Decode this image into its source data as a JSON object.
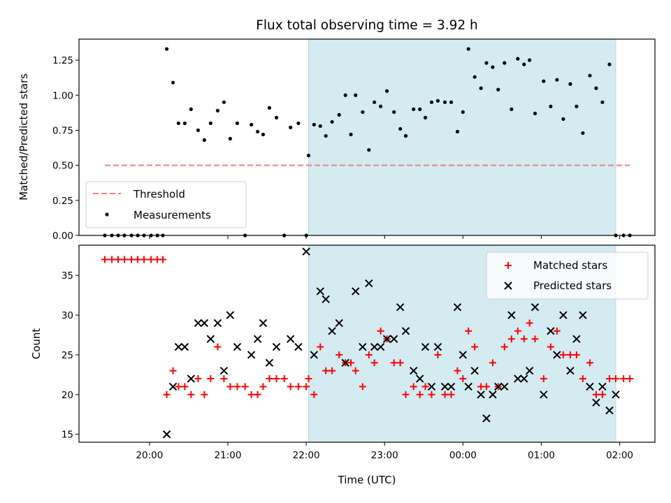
{
  "chart_data": {
    "type": "scatter",
    "title": "Flux total observing time = 3.92 h",
    "xlabel": "Time (UTC)",
    "x_ticks": [
      "20:00",
      "21:00",
      "22:00",
      "23:00",
      "00:00",
      "01:00",
      "02:00"
    ],
    "x_range_hours": [
      19.1,
      26.45
    ],
    "shaded_interval_hours": [
      22.03,
      25.95
    ],
    "shade_color": "#d4ebf2",
    "panels": [
      {
        "ylabel": "Matched/Predicted stars",
        "ylim": [
          0.0,
          1.4
        ],
        "yticks": [
          "0.00",
          "0.25",
          "0.50",
          "0.75",
          "1.00",
          "1.25"
        ],
        "legend_position": "lower-left",
        "threshold": {
          "name": "Threshold",
          "value": 0.5,
          "x_start": 19.43,
          "x_end": 26.13,
          "color": "#f08080"
        },
        "series": [
          {
            "name": "Measurements",
            "color": "#000000",
            "marker": "dot",
            "x": [
              19.43,
              19.52,
              19.6,
              19.68,
              19.77,
              19.85,
              19.93,
              20.02,
              20.1,
              20.17,
              20.22,
              20.3,
              20.37,
              20.45,
              20.53,
              20.62,
              20.7,
              20.78,
              20.87,
              20.95,
              21.03,
              21.12,
              21.22,
              21.3,
              21.38,
              21.45,
              21.53,
              21.62,
              21.72,
              21.8,
              21.9,
              22.0,
              22.03,
              22.1,
              22.18,
              22.25,
              22.33,
              22.42,
              22.5,
              22.57,
              22.63,
              22.72,
              22.8,
              22.87,
              22.95,
              23.03,
              23.12,
              23.2,
              23.27,
              23.37,
              23.45,
              23.52,
              23.6,
              23.68,
              23.77,
              23.85,
              23.93,
              24.0,
              24.07,
              24.15,
              24.23,
              24.3,
              24.38,
              24.45,
              24.53,
              24.62,
              24.7,
              24.78,
              24.85,
              24.92,
              25.03,
              25.12,
              25.2,
              25.28,
              25.37,
              25.45,
              25.53,
              25.62,
              25.7,
              25.78,
              25.87,
              25.95,
              26.05,
              26.13
            ],
            "y": [
              0,
              0,
              0,
              0,
              0,
              0,
              0,
              0,
              0,
              0,
              1.33,
              1.09,
              0.8,
              0.8,
              0.9,
              0.75,
              0.68,
              0.8,
              0.89,
              0.95,
              0.69,
              0.8,
              0.0,
              0.79,
              0.74,
              0.72,
              0.91,
              0.84,
              0.0,
              0.77,
              0.8,
              0.0,
              0.57,
              0.79,
              0.78,
              0.71,
              0.81,
              0.86,
              1.0,
              0.72,
              1.0,
              0.88,
              0.61,
              0.95,
              0.92,
              1.03,
              0.88,
              0.76,
              0.71,
              0.9,
              0.9,
              0.84,
              0.95,
              0.96,
              0.95,
              0.95,
              0.74,
              0.88,
              1.33,
              1.13,
              1.05,
              1.23,
              1.2,
              1.04,
              1.23,
              0.9,
              1.26,
              1.22,
              1.25,
              0.87,
              1.1,
              0.92,
              1.11,
              0.83,
              1.08,
              0.92,
              0.73,
              1.14,
              1.05,
              0.95,
              1.22,
              0.0,
              0.0,
              0.0
            ]
          }
        ]
      },
      {
        "ylabel": "Count",
        "ylim": [
          14,
          38.8
        ],
        "yticks": [
          "15",
          "20",
          "25",
          "30",
          "35"
        ],
        "legend_position": "upper-right",
        "series": [
          {
            "name": "Matched stars",
            "color": "#ff0000",
            "marker": "plus",
            "x": [
              19.43,
              19.52,
              19.6,
              19.68,
              19.77,
              19.85,
              19.93,
              20.02,
              20.1,
              20.17,
              20.22,
              20.3,
              20.37,
              20.45,
              20.53,
              20.62,
              20.7,
              20.78,
              20.87,
              20.95,
              21.03,
              21.12,
              21.22,
              21.3,
              21.38,
              21.45,
              21.53,
              21.62,
              21.72,
              21.8,
              21.9,
              22.0,
              22.03,
              22.1,
              22.18,
              22.25,
              22.33,
              22.42,
              22.5,
              22.57,
              22.63,
              22.72,
              22.8,
              22.87,
              22.95,
              23.03,
              23.12,
              23.2,
              23.27,
              23.37,
              23.45,
              23.52,
              23.6,
              23.68,
              23.77,
              23.85,
              23.93,
              24.0,
              24.07,
              24.15,
              24.23,
              24.3,
              24.38,
              24.45,
              24.53,
              24.62,
              24.7,
              24.78,
              24.85,
              24.92,
              25.03,
              25.12,
              25.2,
              25.28,
              25.37,
              25.45,
              25.53,
              25.62,
              25.7,
              25.78,
              25.87,
              25.95,
              26.05,
              26.13
            ],
            "y": [
              37,
              37,
              37,
              37,
              37,
              37,
              37,
              37,
              37,
              37,
              20,
              23,
              21,
              21,
              20,
              22,
              20,
              22,
              26,
              22,
              21,
              21,
              21,
              20,
              20,
              21,
              22,
              22,
              22,
              21,
              21,
              21,
              22,
              20,
              26,
              23,
              23,
              25,
              24,
              24,
              23,
              21,
              25,
              24,
              28,
              27,
              24,
              24,
              20,
              21,
              20,
              21,
              20,
              25,
              20,
              20,
              23,
              22,
              28,
              26,
              21,
              21,
              24,
              21,
              26,
              27,
              28,
              27,
              29,
              27,
              22,
              26,
              28,
              25,
              25,
              25,
              22,
              24,
              20,
              20,
              22,
              22,
              22,
              22
            ]
          },
          {
            "name": "Predicted stars",
            "color": "#000000",
            "marker": "x",
            "x": [
              20.22,
              20.3,
              20.37,
              20.45,
              20.53,
              20.62,
              20.7,
              20.78,
              20.87,
              20.95,
              21.03,
              21.12,
              21.3,
              21.38,
              21.45,
              21.53,
              21.62,
              21.8,
              21.9,
              22.0,
              22.1,
              22.18,
              22.25,
              22.33,
              22.42,
              22.5,
              22.63,
              22.72,
              22.8,
              22.87,
              22.95,
              23.03,
              23.12,
              23.2,
              23.27,
              23.37,
              23.45,
              23.52,
              23.6,
              23.68,
              23.77,
              23.85,
              23.93,
              24.0,
              24.07,
              24.15,
              24.23,
              24.3,
              24.38,
              24.45,
              24.53,
              24.62,
              24.7,
              24.78,
              24.85,
              24.92,
              25.03,
              25.12,
              25.2,
              25.28,
              25.37,
              25.45,
              25.53,
              25.62,
              25.7,
              25.78,
              25.87,
              25.95
            ],
            "y": [
              15,
              21,
              26,
              26,
              22,
              29,
              29,
              27,
              29,
              23,
              30,
              26,
              25,
              27,
              29,
              24,
              26,
              27,
              26,
              38,
              25,
              33,
              32,
              28,
              29,
              24,
              33,
              26,
              34,
              26,
              26,
              27,
              27,
              31,
              28,
              23,
              22,
              26,
              21,
              26,
              21,
              21,
              31,
              25,
              21,
              23,
              20,
              17,
              20,
              21,
              21,
              30,
              22,
              22,
              23,
              31,
              20,
              28,
              25,
              30,
              23,
              27,
              30,
              21,
              19,
              21,
              18,
              20
            ]
          }
        ]
      }
    ]
  }
}
